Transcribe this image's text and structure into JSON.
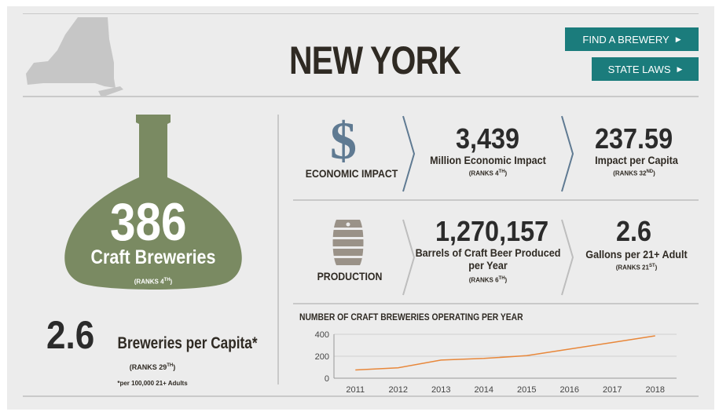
{
  "header": {
    "state_name": "NEW YORK",
    "find_brewery_label": "FIND A BREWERY",
    "state_laws_label": "STATE LAWS"
  },
  "breweries": {
    "count": "386",
    "label": "Craft Breweries",
    "rank_prefix": "(RANKS 4",
    "rank_suffix": "TH",
    "rank_close": ")"
  },
  "per_capita": {
    "value": "2.6",
    "label": "Breweries per Capita*",
    "rank_prefix": "(RANKS 29",
    "rank_suffix": "TH",
    "rank_close": ")",
    "footnote": "*per 100,000 21+ Adults"
  },
  "economic": {
    "icon": "dollar-icon",
    "title": "ECONOMIC IMPACT",
    "impact_value": "3,439",
    "impact_label": "Million Economic Impact",
    "impact_rank_prefix": "(RANKS 4",
    "impact_rank_suffix": "TH",
    "impact_rank_close": ")",
    "per_capita_value": "237.59",
    "per_capita_label": "Impact per Capita",
    "per_capita_rank_prefix": "(RANKS 32",
    "per_capita_rank_suffix": "ND",
    "per_capita_rank_close": ")"
  },
  "production": {
    "icon": "barrel-icon",
    "title": "PRODUCTION",
    "barrels_value": "1,270,157",
    "barrels_label_line1": "Barrels of Craft Beer Produced",
    "barrels_label_line2": "per Year",
    "barrels_rank_prefix": "(RANKS 6",
    "barrels_rank_suffix": "TH",
    "barrels_rank_close": ")",
    "gallons_value": "2.6",
    "gallons_label": "Gallons per 21+ Adult",
    "gallons_rank_prefix": "(RANKS 21",
    "gallons_rank_suffix": "ST",
    "gallons_rank_close": ")"
  },
  "colors": {
    "accent": "#1b7c7c",
    "bottle": "#7a8a62",
    "line": "#e8873a",
    "chevron_blue": "#5f7a92",
    "chevron_gray": "#bdbdbd"
  },
  "chart_data": {
    "type": "line",
    "title": "NUMBER OF CRAFT BREWERIES OPERATING PER YEAR",
    "x": [
      "2011",
      "2012",
      "2013",
      "2014",
      "2015",
      "2016",
      "2017",
      "2018"
    ],
    "series": [
      {
        "name": "Craft Breweries",
        "values": [
          75,
          95,
          165,
          180,
          205,
          265,
          325,
          386
        ]
      }
    ],
    "yticks": [
      "0",
      "200",
      "400"
    ],
    "ylim": [
      0,
      400
    ],
    "xlabel": "",
    "ylabel": "",
    "grid": true
  }
}
